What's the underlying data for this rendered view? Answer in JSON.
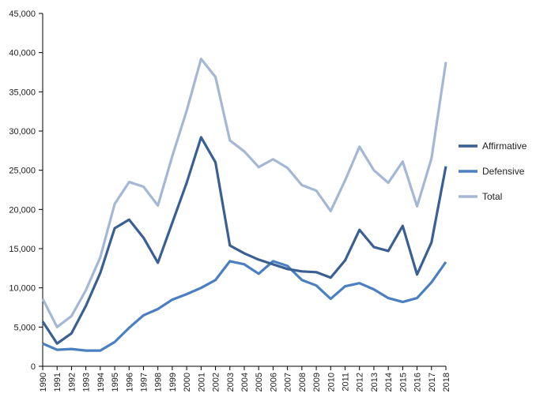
{
  "chart_data": {
    "type": "line",
    "title": "",
    "xlabel": "",
    "ylabel": "",
    "x": [
      "1990",
      "1991",
      "1992",
      "1993",
      "1994",
      "1995",
      "1996",
      "1997",
      "1998",
      "1999",
      "2000",
      "2001",
      "2002",
      "2003",
      "2004",
      "2005",
      "2006",
      "2007",
      "2008",
      "2009",
      "2010",
      "2011",
      "2012",
      "2013",
      "2014",
      "2015",
      "2016",
      "2017",
      "2018"
    ],
    "ylim": [
      0,
      45000
    ],
    "y_ticks": [
      0,
      5000,
      10000,
      15000,
      20000,
      25000,
      30000,
      35000,
      40000,
      45000
    ],
    "y_tick_labels": [
      "0",
      "5,000",
      "10,000",
      "15,000",
      "20,000",
      "25,000",
      "30,000",
      "35,000",
      "40,000",
      "45,000"
    ],
    "grid": false,
    "legend_position": "right",
    "series": [
      {
        "name": "Affirmative",
        "color": "#3a5f93",
        "values": [
          5700,
          2900,
          4200,
          7700,
          11900,
          17600,
          18700,
          16400,
          13200,
          18300,
          23400,
          29200,
          26000,
          15400,
          14400,
          13600,
          13000,
          12400,
          12100,
          12000,
          11300,
          13500,
          17400,
          15200,
          14700,
          17900,
          11700,
          15800,
          25500
        ]
      },
      {
        "name": "Defensive",
        "color": "#4a7fc0",
        "values": [
          2900,
          2100,
          2200,
          2000,
          2000,
          3100,
          4900,
          6500,
          7300,
          8500,
          9200,
          10000,
          11000,
          13400,
          13000,
          11800,
          13400,
          12800,
          11000,
          10300,
          8600,
          10200,
          10600,
          9800,
          8700,
          8200,
          8700,
          10700,
          13300
        ]
      },
      {
        "name": "Total",
        "color": "#a4b8d6",
        "values": [
          8600,
          5000,
          6400,
          9700,
          13900,
          20700,
          23500,
          22900,
          20500,
          26800,
          32600,
          39200,
          36900,
          28800,
          27400,
          25400,
          26400,
          25300,
          23100,
          22400,
          19800,
          23700,
          28000,
          25000,
          23400,
          26100,
          20400,
          26500,
          38800
        ]
      }
    ]
  }
}
